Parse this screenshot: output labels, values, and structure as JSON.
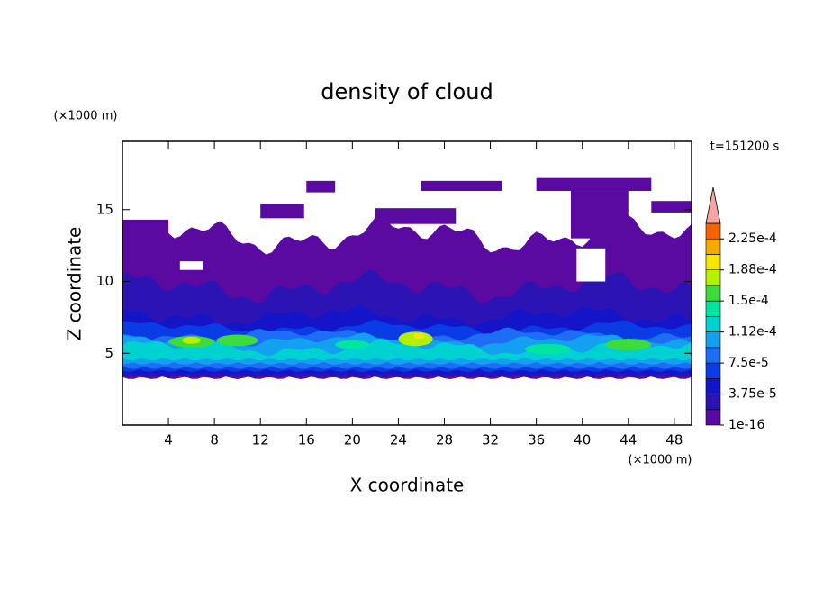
{
  "chart_data": {
    "type": "contour",
    "title": "density of cloud",
    "x_label": "X coordinate",
    "y_label": "Z coordinate",
    "x_unit": "(×1000 m)",
    "y_unit": "(×1000 m)",
    "time_label": "t=151200 s",
    "xlim": [
      0,
      49.5
    ],
    "ylim": [
      0,
      19.75
    ],
    "xticks": [
      4,
      8,
      12,
      16,
      20,
      24,
      28,
      32,
      36,
      40,
      44,
      48
    ],
    "yticks": [
      5,
      10,
      15
    ],
    "levels": [
      1e-16,
      1.875e-05,
      3.75e-05,
      5.625e-05,
      7.5e-05,
      9.375e-05,
      0.0001125,
      0.00013125,
      0.00015,
      0.00016875,
      0.0001875,
      0.00020625,
      0.000225
    ],
    "level_colors": [
      "#5a0aa0",
      "#2c14b4",
      "#1414c8",
      "#0a3ce6",
      "#1e6ef5",
      "#14a0f0",
      "#00d2d2",
      "#00e6a0",
      "#3cdc3c",
      "#b4f000",
      "#f5e600",
      "#f5aa00",
      "#f56400"
    ],
    "extend_color": "#f4a6a6",
    "colorbar_ticks": [
      {
        "value": 1e-16,
        "label": "1e-16"
      },
      {
        "value": 3.75e-05,
        "label": "3.75e-5"
      },
      {
        "value": 7.5e-05,
        "label": "7.5e-5"
      },
      {
        "value": 0.0001125,
        "label": "1.12e-4"
      },
      {
        "value": 0.00015,
        "label": "1.5e-4"
      },
      {
        "value": 0.0001875,
        "label": "1.88e-4"
      },
      {
        "value": 0.000225,
        "label": "2.25e-4"
      }
    ]
  }
}
